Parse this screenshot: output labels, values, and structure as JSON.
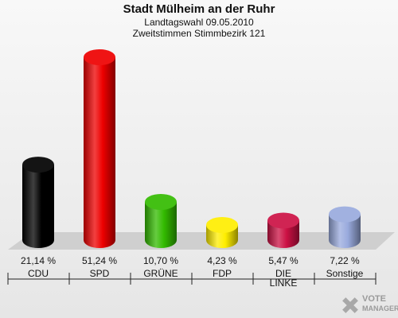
{
  "header": {
    "title": "Stadt Mülheim an der Ruhr",
    "subtitle1": "Landtagswahl 09.05.2010",
    "subtitle2": "Zweitstimmen Stimmbezirk 121"
  },
  "chart_data": {
    "type": "bar",
    "title": "Stadt Mülheim an der Ruhr",
    "subtitle": [
      "Landtagswahl 09.05.2010",
      "Zweitstimmen Stimmbezirk 121"
    ],
    "categories": [
      "CDU",
      "SPD",
      "GRÜNE",
      "FDP",
      "DIE LINKE",
      "Sonstige"
    ],
    "category_lines": [
      [
        "CDU"
      ],
      [
        "SPD"
      ],
      [
        "GRÜNE"
      ],
      [
        "FDP"
      ],
      [
        "DIE",
        "LINKE"
      ],
      [
        "Sonstige"
      ]
    ],
    "values": [
      21.14,
      51.24,
      10.7,
      4.23,
      5.47,
      7.22
    ],
    "value_labels": [
      "21,14 %",
      "51,24 %",
      "10,70 %",
      "4,23 %",
      "5,47 %",
      "7,22 %"
    ],
    "colors": [
      "#000000",
      "#ee0000",
      "#33bb00",
      "#ffee00",
      "#cc1144",
      "#99aadd"
    ],
    "unit": "%",
    "ylim": [
      0,
      51.24
    ],
    "grid": false,
    "legend": "none"
  },
  "logo": {
    "line1": "VOTE",
    "line2": "MANAGER"
  }
}
